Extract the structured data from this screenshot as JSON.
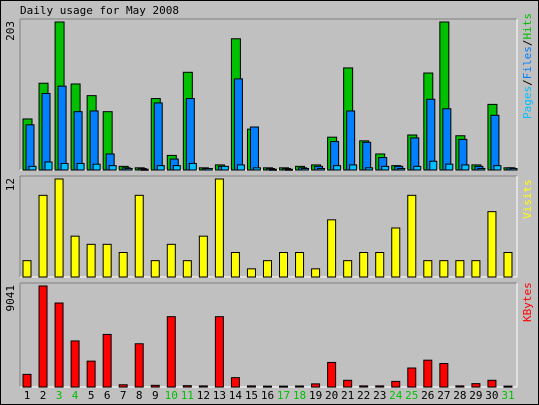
{
  "chart_data": [
    {
      "type": "bar",
      "title": "Daily usage for May 2008",
      "categories": [
        "1",
        "2",
        "3",
        "4",
        "5",
        "6",
        "7",
        "8",
        "9",
        "10",
        "11",
        "12",
        "13",
        "14",
        "15",
        "16",
        "17",
        "18",
        "19",
        "20",
        "21",
        "22",
        "23",
        "24",
        "25",
        "26",
        "27",
        "28",
        "29",
        "30",
        "31"
      ],
      "weekend_days": [
        "3",
        "4",
        "10",
        "11",
        "17",
        "18",
        "24",
        "25",
        "31"
      ],
      "ymax_label": "203",
      "ylim": [
        0,
        203
      ],
      "legend": [
        "Pages",
        "/",
        "Files",
        "/",
        "Hits"
      ],
      "series": [
        {
          "name": "Hits",
          "color": "#00c000",
          "values": [
            70,
            119,
            203,
            118,
            102,
            80,
            5,
            3,
            98,
            20,
            134,
            3,
            7,
            180,
            56,
            3,
            3,
            5,
            7,
            45,
            140,
            40,
            22,
            6,
            48,
            133,
            203,
            47,
            7,
            90,
            3
          ]
        },
        {
          "name": "Files",
          "color": "#0080ff",
          "values": [
            62,
            105,
            115,
            80,
            81,
            22,
            3,
            2,
            92,
            15,
            98,
            2,
            5,
            125,
            59,
            2,
            2,
            3,
            5,
            39,
            81,
            38,
            17,
            5,
            44,
            97,
            84,
            42,
            5,
            75,
            3
          ]
        },
        {
          "name": "Pages",
          "color": "#00c0ff",
          "values": [
            5,
            11,
            9,
            9,
            8,
            6,
            2,
            1,
            6,
            6,
            9,
            2,
            5,
            7,
            3,
            1,
            1,
            2,
            2,
            6,
            7,
            3,
            5,
            2,
            5,
            12,
            8,
            7,
            2,
            6,
            2
          ]
        }
      ]
    },
    {
      "type": "bar",
      "ymax_label": "12",
      "ylim": [
        0,
        12
      ],
      "legend": [
        "Visits"
      ],
      "series": [
        {
          "name": "Visits",
          "color": "#ffff00",
          "values": [
            2,
            10,
            12,
            5,
            4,
            4,
            3,
            10,
            2,
            4,
            2,
            5,
            12,
            3,
            1,
            2,
            3,
            3,
            1,
            7,
            2,
            3,
            3,
            6,
            10,
            2,
            2,
            2,
            2,
            8,
            3
          ]
        }
      ]
    },
    {
      "type": "bar",
      "ymax_label": "9041",
      "ylim": [
        0,
        9041
      ],
      "legend": [
        "KBytes"
      ],
      "series": [
        {
          "name": "KBytes",
          "color": "#ff0000",
          "values": [
            1131,
            9041,
            7518,
            4124,
            2315,
            4706,
            200,
            3871,
            150,
            6295,
            120,
            100,
            6295,
            837,
            100,
            80,
            80,
            90,
            280,
            2200,
            600,
            100,
            100,
            500,
            1700,
            2400,
            2100,
            100,
            300,
            600,
            80
          ]
        }
      ]
    }
  ]
}
